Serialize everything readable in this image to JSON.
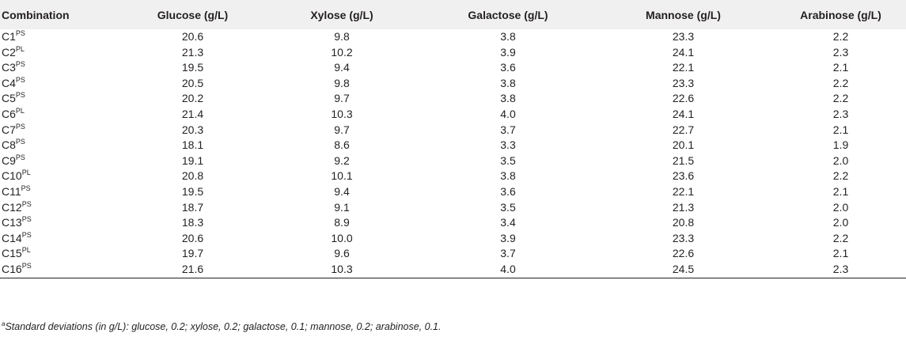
{
  "table": {
    "headers": [
      "Combination",
      "Glucose (g/L)",
      "Xylose (g/L)",
      "Galactose (g/L)",
      "Mannose (g/L)",
      "Arabinose (g/L)"
    ],
    "rows": [
      {
        "base": "C1",
        "sup": "PS",
        "values": [
          "20.6",
          "9.8",
          "3.8",
          "23.3",
          "2.2"
        ]
      },
      {
        "base": "C2",
        "sup": "PL",
        "values": [
          "21.3",
          "10.2",
          "3.9",
          "24.1",
          "2.3"
        ]
      },
      {
        "base": "C3",
        "sup": "PS",
        "values": [
          "19.5",
          "9.4",
          "3.6",
          "22.1",
          "2.1"
        ]
      },
      {
        "base": "C4",
        "sup": "PS",
        "values": [
          "20.5",
          "9.8",
          "3.8",
          "23.3",
          "2.2"
        ]
      },
      {
        "base": "C5",
        "sup": "PS",
        "values": [
          "20.2",
          "9.7",
          "3.8",
          "22.6",
          "2.2"
        ]
      },
      {
        "base": "C6",
        "sup": "PL",
        "values": [
          "21.4",
          "10.3",
          "4.0",
          "24.1",
          "2.3"
        ]
      },
      {
        "base": "C7",
        "sup": "PS",
        "values": [
          "20.3",
          "9.7",
          "3.7",
          "22.7",
          "2.1"
        ]
      },
      {
        "base": "C8",
        "sup": "PS",
        "values": [
          "18.1",
          "8.6",
          "3.3",
          "20.1",
          "1.9"
        ]
      },
      {
        "base": "C9",
        "sup": "PS",
        "values": [
          "19.1",
          "9.2",
          "3.5",
          "21.5",
          "2.0"
        ]
      },
      {
        "base": "C10",
        "sup": "PL",
        "values": [
          "20.8",
          "10.1",
          "3.8",
          "23.6",
          "2.2"
        ]
      },
      {
        "base": "C11",
        "sup": "PS",
        "values": [
          "19.5",
          "9.4",
          "3.6",
          "22.1",
          "2.1"
        ]
      },
      {
        "base": "C12",
        "sup": "PS",
        "values": [
          "18.7",
          "9.1",
          "3.5",
          "21.3",
          "2.0"
        ]
      },
      {
        "base": "C13",
        "sup": "PS",
        "values": [
          "18.3",
          "8.9",
          "3.4",
          "20.8",
          "2.0"
        ]
      },
      {
        "base": "C14",
        "sup": "PS",
        "values": [
          "20.6",
          "10.0",
          "3.9",
          "23.3",
          "2.2"
        ]
      },
      {
        "base": "C15",
        "sup": "PL",
        "values": [
          "19.7",
          "9.6",
          "3.7",
          "22.6",
          "2.1"
        ]
      },
      {
        "base": "C16",
        "sup": "PS",
        "values": [
          "21.6",
          "10.3",
          "4.0",
          "24.5",
          "2.3"
        ]
      }
    ]
  },
  "footnote": {
    "marker": "a",
    "text": "Standard deviations (in g/L): glucose, 0.2; xylose, 0.2; galactose, 0.1; mannose, 0.2; arabinose, 0.1."
  }
}
